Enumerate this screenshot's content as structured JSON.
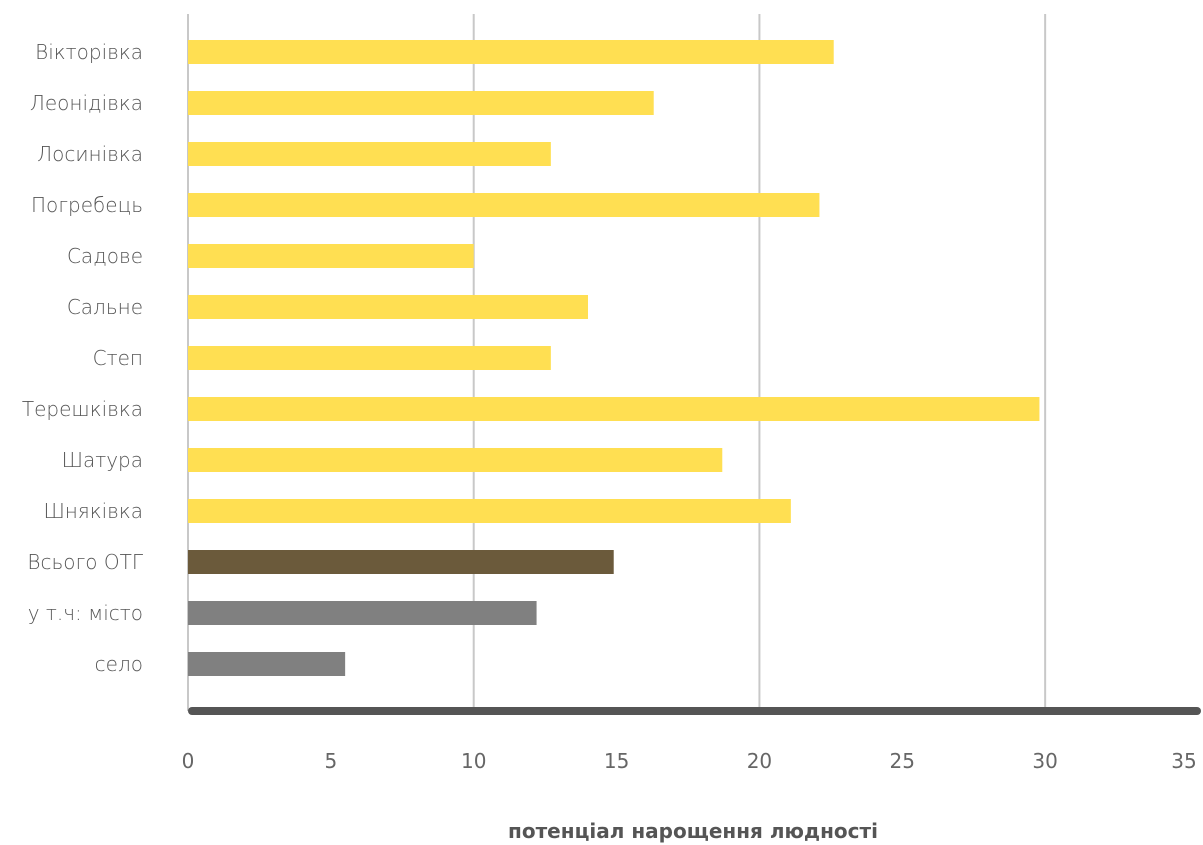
{
  "chart_data": {
    "type": "bar",
    "orientation": "horizontal",
    "categories": [
      "Вікторівка",
      "Леонідівка",
      "Лосинівка",
      "Погребець",
      "Садове",
      "Сальне",
      "Степ",
      "Терешківка",
      "Шатура",
      "Шняківка",
      "Всього ОТГ",
      "у т.ч: місто",
      "село"
    ],
    "values": [
      22.6,
      16.3,
      12.7,
      22.1,
      10.0,
      14.0,
      12.7,
      29.8,
      18.7,
      21.1,
      14.9,
      12.2,
      5.5
    ],
    "bar_colors": [
      "#FFDF52",
      "#FFDF52",
      "#FFDF52",
      "#FFDF52",
      "#FFDF52",
      "#FFDF52",
      "#FFDF52",
      "#FFDF52",
      "#FFDF52",
      "#FFDF52",
      "#6B5A3B",
      "#808080",
      "#808080"
    ],
    "xlim": [
      0,
      35
    ],
    "xticks": [
      "0",
      "5",
      "10",
      "15",
      "20",
      "25",
      "30",
      "35"
    ],
    "gridlines": [
      0,
      10,
      20,
      30
    ],
    "xlabel": "потенціал нарощення людності",
    "title": "",
    "ylabel": ""
  }
}
